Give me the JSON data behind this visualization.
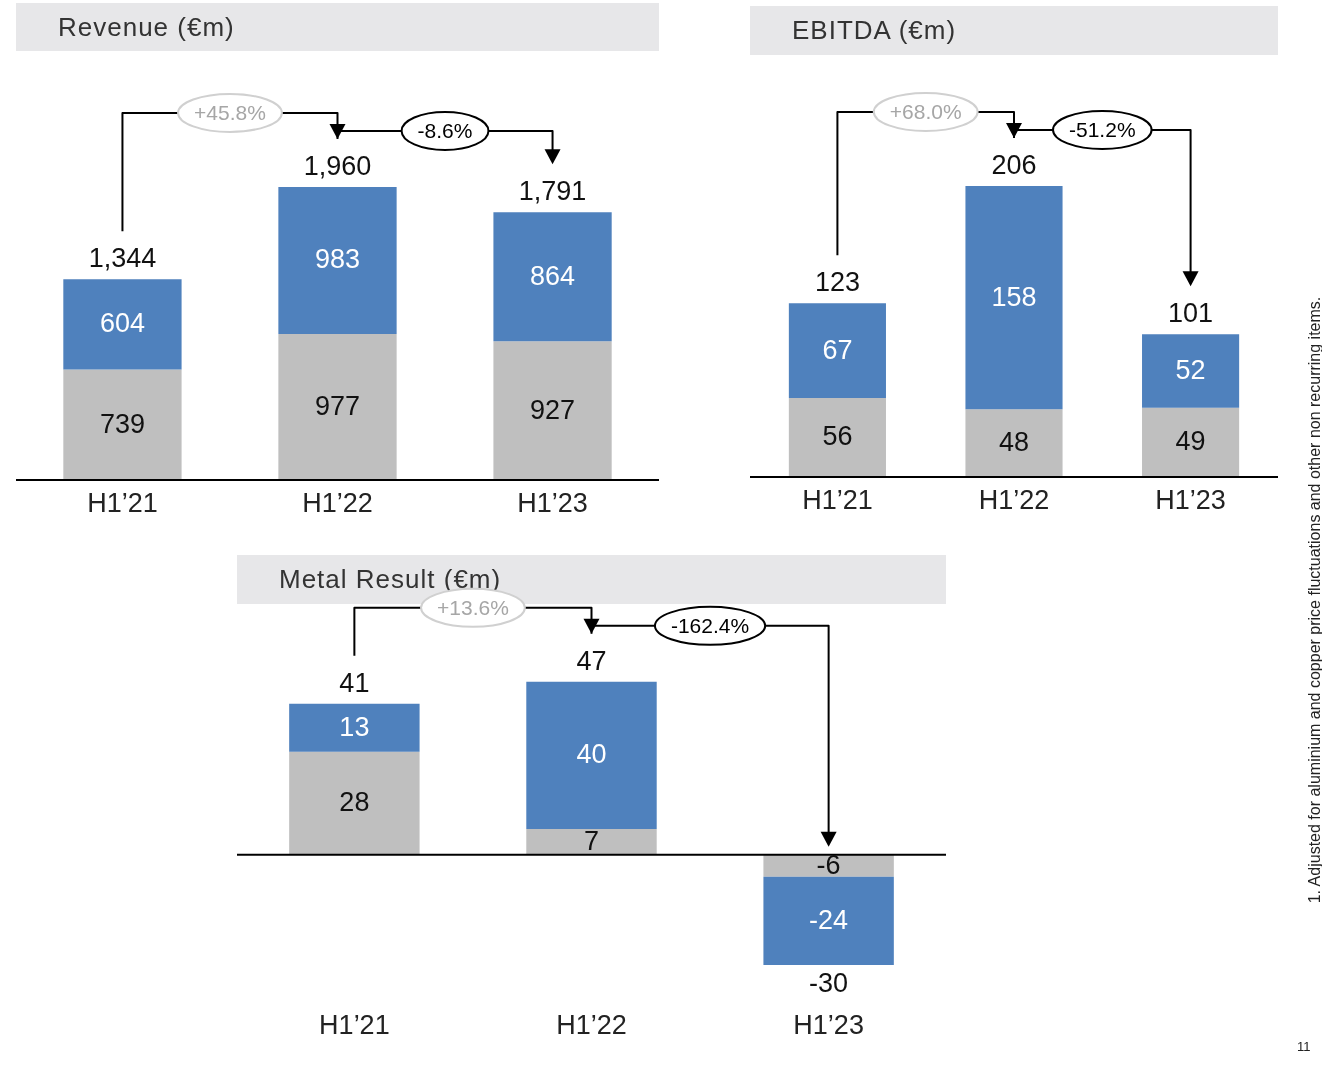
{
  "chart_data": [
    {
      "type": "bar",
      "title": "Revenue (€m)",
      "categories": [
        "H1’21",
        "H1’22",
        "H1’23"
      ],
      "stacked": true,
      "data_labels": true,
      "tick_labels": "x",
      "series": [
        {
          "color": "#bfbfbf",
          "values": [
            739,
            977,
            927
          ]
        },
        {
          "color": "#4f81bd",
          "values": [
            604,
            983,
            864
          ]
        }
      ],
      "totals": [
        "1,344",
        "1,960",
        "1,791"
      ],
      "annotations": [
        "+45.8%",
        "-8.6%"
      ]
    },
    {
      "type": "bar",
      "title": "EBITDA (€m)",
      "categories": [
        "H1’21",
        "H1’22",
        "H1’23"
      ],
      "stacked": true,
      "data_labels": true,
      "tick_labels": "x",
      "series": [
        {
          "color": "#bfbfbf",
          "values": [
            56,
            48,
            49
          ]
        },
        {
          "color": "#4f81bd",
          "values": [
            67,
            158,
            52
          ]
        }
      ],
      "totals": [
        "123",
        "206",
        "101"
      ],
      "annotations": [
        "+68.0%",
        "-51.2%"
      ]
    },
    {
      "type": "bar",
      "title": "Metal Result (€m)",
      "categories": [
        "H1’21",
        "H1’22",
        "H1’23"
      ],
      "stacked": true,
      "data_labels": true,
      "tick_labels": "x",
      "series": [
        {
          "color": "#bfbfbf",
          "values": [
            28,
            7,
            -6
          ]
        },
        {
          "color": "#4f81bd",
          "values": [
            13,
            40,
            -24
          ]
        }
      ],
      "totals": [
        "41",
        "47",
        "-30"
      ],
      "annotations": [
        "+13.6%",
        "-162.4%",
        "1. Adjusted for aluminium and copper price fluctuations and other non recurring items.",
        "11"
      ]
    }
  ]
}
